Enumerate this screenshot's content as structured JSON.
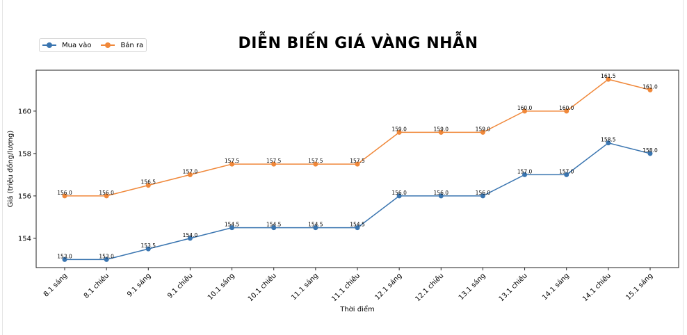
{
  "chart_data": {
    "type": "line",
    "title": "DIỄN BIẾN GIÁ VÀNG NHẪN",
    "xlabel": "Thời điểm",
    "ylabel": "Giá (triệu đồng/lượng)",
    "categories": [
      "8.1 sáng",
      "8.1 chiều",
      "9.1 sáng",
      "9.1 chiều",
      "10.1 sáng",
      "10.1 chiều",
      "11.1 sáng",
      "11.1 chiều",
      "12.1 sáng",
      "12.1 chiều",
      "13.1 sáng",
      "13.1 chiều",
      "14.1 sáng",
      "14.1 chiều",
      "15.1 sáng"
    ],
    "series": [
      {
        "name": "Mua vào",
        "color": "#3a75b0",
        "values": [
          153.0,
          153.0,
          153.5,
          154.0,
          154.5,
          154.5,
          154.5,
          154.5,
          156.0,
          156.0,
          156.0,
          157.0,
          157.0,
          158.5,
          158.0
        ]
      },
      {
        "name": "Bán ra",
        "color": "#f0883a",
        "values": [
          156.0,
          156.0,
          156.5,
          157.0,
          157.5,
          157.5,
          157.5,
          157.5,
          159.0,
          159.0,
          159.0,
          160.0,
          160.0,
          161.5,
          161.0
        ]
      }
    ],
    "yticks": [
      154,
      156,
      158,
      160
    ],
    "ylim": [
      152.62,
      161.93
    ],
    "grid": false,
    "legend": "top-left"
  }
}
